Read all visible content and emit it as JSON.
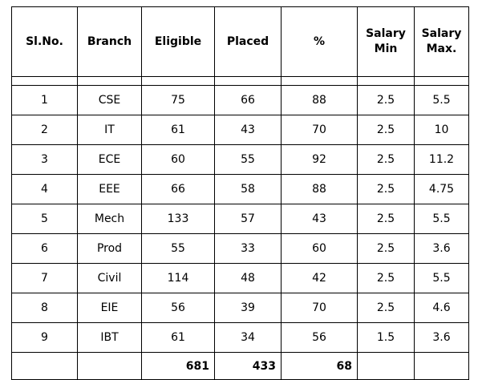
{
  "table": {
    "headers": [
      "Sl.No.",
      "Branch",
      "Eligible",
      "Placed",
      "%",
      "Salary Min",
      "Salary Max."
    ],
    "rows": [
      [
        "1",
        "CSE",
        "75",
        "66",
        "88",
        "2.5",
        "5.5"
      ],
      [
        "2",
        "IT",
        "61",
        "43",
        "70",
        "2.5",
        "10"
      ],
      [
        "3",
        "ECE",
        "60",
        "55",
        "92",
        "2.5",
        "11.2"
      ],
      [
        "4",
        "EEE",
        "66",
        "58",
        "88",
        "2.5",
        "4.75"
      ],
      [
        "5",
        "Mech",
        "133",
        "57",
        "43",
        "2.5",
        "5.5"
      ],
      [
        "6",
        "Prod",
        "55",
        "33",
        "60",
        "2.5",
        "3.6"
      ],
      [
        "7",
        "Civil",
        "114",
        "48",
        "42",
        "2.5",
        "5.5"
      ],
      [
        "8",
        "EIE",
        "56",
        "39",
        "70",
        "2.5",
        "4.6"
      ],
      [
        "9",
        "IBT",
        "61",
        "34",
        "56",
        "1.5",
        "3.6"
      ]
    ],
    "totals": [
      "",
      "",
      "681",
      "433",
      "68",
      "",
      ""
    ]
  }
}
